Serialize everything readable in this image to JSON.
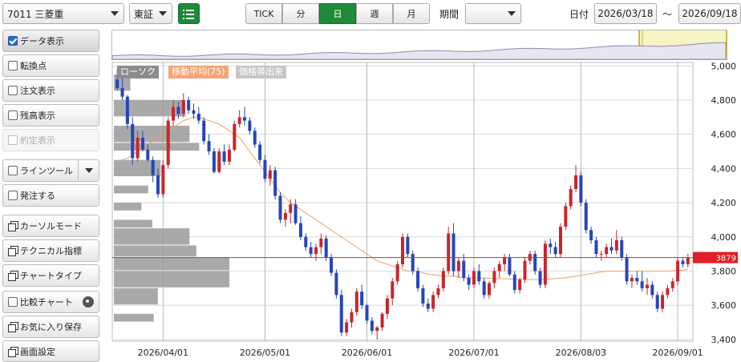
{
  "header": {
    "stock_select": "7011 三菱重",
    "market_select": "東証",
    "timeframes": [
      "TICK",
      "分",
      "日",
      "週",
      "月"
    ],
    "active_timeframe": "日",
    "period_label": "期間",
    "period_value": "",
    "date_label": "日付",
    "date_from": "2026/03/18",
    "date_tilde": "～",
    "date_to": "2026/09/18"
  },
  "sidebar": {
    "data_display": "データ表示",
    "turning_point": "転換点",
    "order_display": "注文表示",
    "balance_display": "残高表示",
    "execution_display": "約定表示",
    "line_tool": "ラインツール",
    "send_order": "発注する",
    "cursor_mode": "カーソルモード",
    "technical_indicator": "テクニカル指標",
    "chart_type": "チャートタイプ",
    "compare_chart": "比較チャート",
    "save_favorite": "お気に入り保存",
    "screen_settings": "画面設定"
  },
  "legend": {
    "candle": "ローソク",
    "ma": "移動平均(75)",
    "volume_profile": "価格帯出来"
  },
  "colors": {
    "up": "#c8262b",
    "down": "#2546b8",
    "ma": "#f0a060",
    "price_line": "#d9272e",
    "profile": "#9a9a9a",
    "accent_green": "#1e8a3a"
  },
  "chart_data": {
    "type": "candlestick",
    "last_price": "3879",
    "y_ticks": [
      "5,000",
      "4,800",
      "4,600",
      "4,400",
      "4,200",
      "4,000",
      "3,800",
      "3,600",
      "3,400"
    ],
    "y_tick_values": [
      5000,
      4800,
      4600,
      4400,
      4200,
      4000,
      3800,
      3600,
      3400
    ],
    "ylim": [
      3390,
      5020
    ],
    "x_labels": [
      "2026/04/01",
      "2026/05/01",
      "2026/06/01",
      "2026/07/01",
      "2026/08/03",
      "2026/09/01"
    ],
    "x_label_index": [
      9,
      29,
      49,
      70,
      91,
      110
    ],
    "candles": [
      [
        4920,
        4980,
        4860,
        4870
      ],
      [
        4870,
        4950,
        4800,
        4820
      ],
      [
        4820,
        4830,
        4630,
        4660
      ],
      [
        4660,
        4700,
        4420,
        4460
      ],
      [
        4460,
        4620,
        4440,
        4580
      ],
      [
        4580,
        4620,
        4500,
        4510
      ],
      [
        4510,
        4540,
        4440,
        4450
      ],
      [
        4450,
        4470,
        4320,
        4360
      ],
      [
        4360,
        4400,
        4230,
        4250
      ],
      [
        4250,
        4450,
        4230,
        4420
      ],
      [
        4420,
        4700,
        4400,
        4680
      ],
      [
        4680,
        4800,
        4650,
        4760
      ],
      [
        4760,
        4790,
        4690,
        4720
      ],
      [
        4720,
        4840,
        4700,
        4800
      ],
      [
        4800,
        4820,
        4720,
        4740
      ],
      [
        4740,
        4780,
        4690,
        4720
      ],
      [
        4720,
        4760,
        4660,
        4680
      ],
      [
        4680,
        4700,
        4540,
        4560
      ],
      [
        4560,
        4600,
        4480,
        4500
      ],
      [
        4500,
        4520,
        4370,
        4380
      ],
      [
        4380,
        4520,
        4370,
        4500
      ],
      [
        4500,
        4540,
        4420,
        4440
      ],
      [
        4440,
        4540,
        4420,
        4510
      ],
      [
        4510,
        4680,
        4500,
        4660
      ],
      [
        4660,
        4740,
        4640,
        4700
      ],
      [
        4700,
        4760,
        4650,
        4680
      ],
      [
        4680,
        4700,
        4600,
        4620
      ],
      [
        4620,
        4640,
        4520,
        4540
      ],
      [
        4540,
        4560,
        4430,
        4450
      ],
      [
        4450,
        4480,
        4320,
        4340
      ],
      [
        4340,
        4420,
        4300,
        4390
      ],
      [
        4390,
        4410,
        4220,
        4240
      ],
      [
        4240,
        4260,
        4080,
        4100
      ],
      [
        4100,
        4160,
        4060,
        4140
      ],
      [
        4140,
        4220,
        4080,
        4190
      ],
      [
        4190,
        4220,
        4070,
        4080
      ],
      [
        4080,
        4120,
        3980,
        4000
      ],
      [
        4000,
        4020,
        3920,
        3940
      ],
      [
        3940,
        3970,
        3880,
        3900
      ],
      [
        3900,
        3960,
        3860,
        3940
      ],
      [
        3940,
        4020,
        3900,
        3990
      ],
      [
        3990,
        4010,
        3860,
        3880
      ],
      [
        3880,
        3900,
        3770,
        3790
      ],
      [
        3790,
        3810,
        3640,
        3660
      ],
      [
        3660,
        3690,
        3420,
        3440
      ],
      [
        3440,
        3520,
        3420,
        3500
      ],
      [
        3500,
        3580,
        3470,
        3560
      ],
      [
        3560,
        3700,
        3540,
        3680
      ],
      [
        3680,
        3720,
        3580,
        3600
      ],
      [
        3600,
        3610,
        3490,
        3510
      ],
      [
        3510,
        3530,
        3430,
        3450
      ],
      [
        3450,
        3480,
        3400,
        3470
      ],
      [
        3470,
        3560,
        3450,
        3550
      ],
      [
        3550,
        3660,
        3520,
        3640
      ],
      [
        3640,
        3760,
        3600,
        3740
      ],
      [
        3740,
        3860,
        3720,
        3840
      ],
      [
        3840,
        4020,
        3820,
        4000
      ],
      [
        4000,
        4020,
        3880,
        3900
      ],
      [
        3900,
        3920,
        3780,
        3800
      ],
      [
        3800,
        3820,
        3680,
        3700
      ],
      [
        3700,
        3720,
        3590,
        3610
      ],
      [
        3610,
        3640,
        3560,
        3580
      ],
      [
        3580,
        3680,
        3560,
        3660
      ],
      [
        3660,
        3720,
        3640,
        3700
      ],
      [
        3700,
        3820,
        3680,
        3800
      ],
      [
        3800,
        4060,
        3780,
        4020
      ],
      [
        4020,
        4080,
        3770,
        3800
      ],
      [
        3800,
        3880,
        3760,
        3860
      ],
      [
        3860,
        3900,
        3740,
        3760
      ],
      [
        3760,
        3780,
        3690,
        3720
      ],
      [
        3720,
        3820,
        3700,
        3800
      ],
      [
        3800,
        3840,
        3720,
        3740
      ],
      [
        3740,
        3760,
        3640,
        3660
      ],
      [
        3660,
        3740,
        3640,
        3730
      ],
      [
        3730,
        3820,
        3700,
        3800
      ],
      [
        3800,
        3860,
        3760,
        3840
      ],
      [
        3840,
        3900,
        3800,
        3880
      ],
      [
        3880,
        3900,
        3770,
        3780
      ],
      [
        3780,
        3800,
        3670,
        3690
      ],
      [
        3690,
        3760,
        3670,
        3750
      ],
      [
        3750,
        3880,
        3730,
        3860
      ],
      [
        3860,
        3920,
        3840,
        3900
      ],
      [
        3900,
        3920,
        3780,
        3800
      ],
      [
        3800,
        3820,
        3700,
        3720
      ],
      [
        3720,
        3980,
        3700,
        3960
      ],
      [
        3960,
        3990,
        3900,
        3940
      ],
      [
        3940,
        3970,
        3880,
        3900
      ],
      [
        3900,
        4080,
        3880,
        4060
      ],
      [
        4060,
        4200,
        4040,
        4180
      ],
      [
        4180,
        4300,
        4160,
        4280
      ],
      [
        4280,
        4420,
        4260,
        4360
      ],
      [
        4360,
        4380,
        4180,
        4200
      ],
      [
        4200,
        4220,
        4020,
        4040
      ],
      [
        4040,
        4060,
        3960,
        3980
      ],
      [
        3980,
        4000,
        3880,
        3900
      ],
      [
        3900,
        3920,
        3860,
        3900
      ],
      [
        3900,
        3960,
        3880,
        3940
      ],
      [
        3940,
        3990,
        3900,
        3920
      ],
      [
        3920,
        4040,
        3900,
        3980
      ],
      [
        3980,
        4000,
        3860,
        3880
      ],
      [
        3880,
        3900,
        3720,
        3740
      ],
      [
        3740,
        3780,
        3700,
        3760
      ],
      [
        3760,
        3800,
        3720,
        3740
      ],
      [
        3740,
        3800,
        3680,
        3700
      ],
      [
        3700,
        3760,
        3660,
        3720
      ],
      [
        3720,
        3740,
        3640,
        3660
      ],
      [
        3660,
        3680,
        3560,
        3580
      ],
      [
        3580,
        3680,
        3560,
        3660
      ],
      [
        3660,
        3720,
        3640,
        3700
      ],
      [
        3700,
        3760,
        3680,
        3740
      ],
      [
        3740,
        3880,
        3720,
        3860
      ],
      [
        3860,
        3880,
        3820,
        3840
      ],
      [
        3840,
        3900,
        3820,
        3879
      ]
    ],
    "ma75": [
      4440,
      4450,
      4460,
      4480,
      4500,
      4520,
      4540,
      4560,
      4580,
      4600,
      4620,
      4640,
      4660,
      4680,
      4690,
      4700,
      4700,
      4690,
      4680,
      4670,
      4660,
      4640,
      4620,
      4600,
      4580,
      4540,
      4500,
      4460,
      4420,
      4380,
      4340,
      4300,
      4260,
      4230,
      4200,
      4180,
      4160,
      4140,
      4120,
      4100,
      4080,
      4060,
      4040,
      4020,
      4000,
      3980,
      3960,
      3940,
      3920,
      3900,
      3880,
      3860,
      3850,
      3840,
      3830,
      3820,
      3810,
      3800,
      3800,
      3800,
      3790,
      3780,
      3780,
      3775,
      3770,
      3770,
      3770,
      3765,
      3760,
      3760,
      3760,
      3760,
      3760,
      3758,
      3756,
      3755,
      3755,
      3754,
      3752,
      3752,
      3752,
      3750,
      3750,
      3750,
      3752,
      3754,
      3756,
      3758,
      3760,
      3765,
      3770,
      3775,
      3780,
      3785,
      3790,
      3795,
      3800,
      3800,
      3800,
      3800,
      3800,
      3800,
      3800,
      3800,
      3800,
      3800,
      3800,
      3800,
      3800,
      3802,
      3804,
      3806,
      3810
    ],
    "volume_profile": [
      {
        "low": 4850,
        "high": 4950,
        "volume": 12
      },
      {
        "low": 4700,
        "high": 4800,
        "volume": 52
      },
      {
        "low": 4550,
        "high": 4650,
        "volume": 55
      },
      {
        "low": 4500,
        "high": 4550,
        "volume": 62
      },
      {
        "low": 4350,
        "high": 4450,
        "volume": 34
      },
      {
        "low": 4250,
        "high": 4300,
        "volume": 25
      },
      {
        "low": 4150,
        "high": 4200,
        "volume": 20
      },
      {
        "low": 4050,
        "high": 4100,
        "volume": 28
      },
      {
        "low": 3950,
        "high": 4050,
        "volume": 55
      },
      {
        "low": 3880,
        "high": 3950,
        "volume": 60
      },
      {
        "low": 3800,
        "high": 3880,
        "volume": 84
      },
      {
        "low": 3700,
        "high": 3800,
        "volume": 84
      },
      {
        "low": 3600,
        "high": 3700,
        "volume": 32
      },
      {
        "low": 3500,
        "high": 3550,
        "volume": 29
      }
    ]
  }
}
